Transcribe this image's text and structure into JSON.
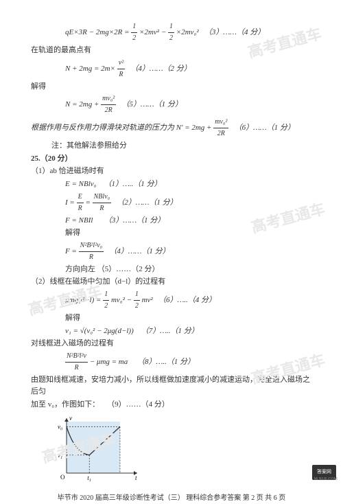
{
  "watermarks": {
    "w1": "高考直通车",
    "w2": "高考直通车",
    "w3": "高考直通车",
    "w4": "高考直通车",
    "w5": "高考直通车"
  },
  "lines": {
    "eq1": "qE×3R − 2mg×2R = ",
    "eq1_half": "½",
    "eq1_mid1": "×2mv² − ",
    "eq1_mid2": "×2mv₀²",
    "eq1_ref": "（3）……（4 分）",
    "t1": "在轨道的最高点有",
    "eq2_l": "N + 2mg = 2m×",
    "eq2_num": "v²",
    "eq2_den": "R",
    "eq2_ref": "（4）……（2 分）",
    "t2": "解得",
    "eq3_l": "N = 2mg + ",
    "eq3_num": "mv₀²",
    "eq3_den": "2R",
    "eq3_ref": "（5）……（1 分）",
    "t3_a": "根据作用与反作用力得滑块对轨道的压力为 N' = 2mg + ",
    "t3_num": "mv₀²",
    "t3_den": "2R",
    "t3_ref": "（6）……（1 分）",
    "note": "注：其他解法参照给分",
    "q25": "25.（20 分）",
    "p1": "（1）ab 恰进磁场时有",
    "eq4": "E = NBlv₀",
    "eq4_ref": "（1）…..（1 分）",
    "eq5_l": "I = ",
    "eq5_n1": "E",
    "eq5_d1": "R",
    "eq5_eq": " = ",
    "eq5_n2": "NBlv₀",
    "eq5_d2": "R",
    "eq5_ref": "（2）……（1 分）",
    "eq6": "F = NBIl",
    "eq6_ref": "（3）……（1 分）",
    "t4": "解得",
    "eq7_l": "F = ",
    "eq7_num": "N²B²l²v₀",
    "eq7_den": "R",
    "eq7_ref": "（4）……（1 分）",
    "t5": "方向向左 （5）……（2 分）",
    "p2": "（2）线框在磁场中匀加（d−l）的过程有",
    "eq8_l": "μmg(d−l) = ",
    "eq8_m1": "mv₀² − ",
    "eq8_m2": "mv²",
    "eq8_ref": "（6）…..（4 分）",
    "t6": "解得",
    "eq9": "v₁ = √(v₀² − 2μg(d−l))",
    "eq9_ref": "（7）…..（1 分）",
    "t7": "对线框进入磁场的过程有",
    "eq10_num": "N²B²l²v",
    "eq10_den": "R",
    "eq10_r": " − μmg = ma",
    "eq10_ref": "（8）…..（1 分）",
    "t8": "由题知线框减速，安培力减小，所以线框做加速度减小的减速运动，完全进入磁场之后匀",
    "t9": "加至 v₀，作图如下：",
    "t9_ref": "（9）……（4 分）"
  },
  "chart": {
    "width": 135,
    "height": 100,
    "bg": "#d9e8f5",
    "axis_color": "#333333",
    "curve_color": "#333333",
    "dash_color": "#333333",
    "y_label_top": "v₀",
    "y_label_mid": "v₁",
    "x_label_1": "t₁",
    "x_label_2": "t",
    "origin": "O",
    "y_axis_label": "v"
  },
  "footer": "毕节市 2020 届高三年级诊断性考试（三）  理科综合参考答案   第 2 页 共 6 页",
  "stamp": "答案网",
  "url": "M.XUE.COM"
}
